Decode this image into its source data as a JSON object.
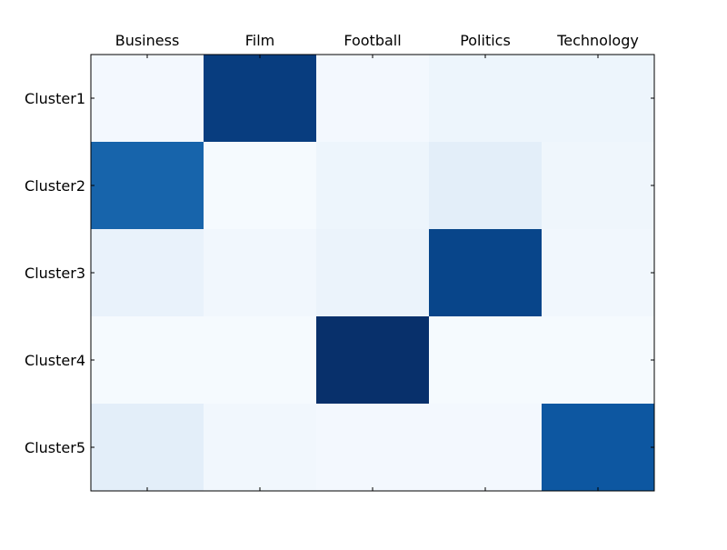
{
  "chart_data": {
    "type": "heatmap",
    "title": "",
    "xlabel": "",
    "ylabel": "",
    "x_categories": [
      "Business",
      "Film",
      "Football",
      "Politics",
      "Technology"
    ],
    "y_categories": [
      "Cluster1",
      "Cluster2",
      "Cluster3",
      "Cluster4",
      "Cluster5"
    ],
    "values": [
      [
        0.02,
        0.95,
        0.02,
        0.05,
        0.05
      ],
      [
        0.8,
        0.01,
        0.05,
        0.1,
        0.04
      ],
      [
        0.07,
        0.03,
        0.06,
        0.92,
        0.03
      ],
      [
        0.01,
        0.01,
        1.0,
        0.01,
        0.01
      ],
      [
        0.1,
        0.03,
        0.02,
        0.02,
        0.85
      ]
    ],
    "value_range": [
      0,
      1
    ],
    "colormap": "Blues",
    "x_tick_position": "top",
    "grid": false,
    "legend": "none"
  }
}
